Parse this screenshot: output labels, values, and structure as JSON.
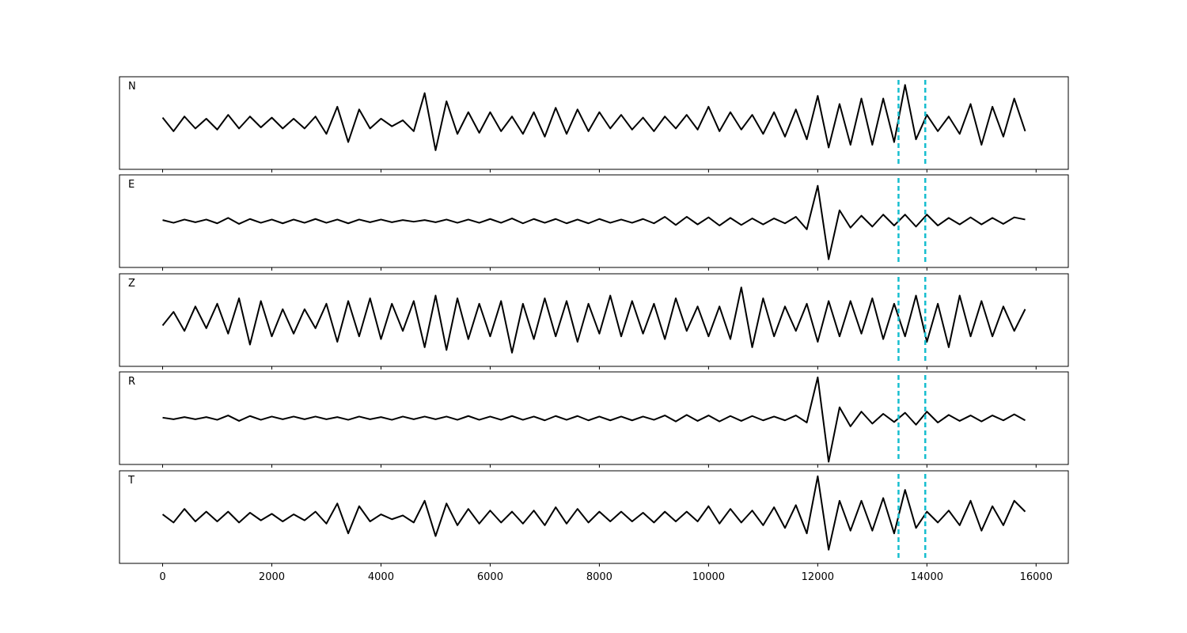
{
  "chart_data": [
    {
      "type": "line",
      "title": "N",
      "color": "#000000",
      "vline_color": "#17becf",
      "vlines": [
        13480,
        13970
      ],
      "xlim": [
        -790,
        16590
      ],
      "xticks": [
        0,
        2000,
        4000,
        6000,
        8000,
        10000,
        12000,
        14000,
        16000
      ],
      "ylim": [
        -0.85,
        0.85
      ],
      "x": [
        0,
        200,
        400,
        600,
        800,
        1000,
        1200,
        1400,
        1600,
        1800,
        2000,
        2200,
        2400,
        2600,
        2800,
        3000,
        3200,
        3400,
        3600,
        3800,
        4000,
        4200,
        4400,
        4600,
        4800,
        5000,
        5200,
        5400,
        5600,
        5800,
        6000,
        6200,
        6400,
        6600,
        6800,
        7000,
        7200,
        7400,
        7600,
        7800,
        8000,
        8200,
        8400,
        8600,
        8800,
        9000,
        9200,
        9400,
        9600,
        9800,
        10000,
        10200,
        10400,
        10600,
        10800,
        11000,
        11200,
        11400,
        11600,
        11800,
        12000,
        12200,
        12400,
        12600,
        12800,
        13000,
        13200,
        13400,
        13600,
        13800,
        14000,
        14200,
        14400,
        14600,
        14800,
        15000,
        15200,
        15400,
        15600,
        15800
      ],
      "values": [
        0.1,
        -0.15,
        0.12,
        -0.1,
        0.08,
        -0.12,
        0.15,
        -0.1,
        0.12,
        -0.08,
        0.1,
        -0.1,
        0.08,
        -0.1,
        0.12,
        -0.2,
        0.3,
        -0.35,
        0.25,
        -0.1,
        0.08,
        -0.06,
        0.05,
        -0.15,
        0.55,
        -0.5,
        0.4,
        -0.2,
        0.2,
        -0.18,
        0.2,
        -0.15,
        0.12,
        -0.2,
        0.2,
        -0.25,
        0.28,
        -0.2,
        0.25,
        -0.15,
        0.2,
        -0.1,
        0.15,
        -0.12,
        0.1,
        -0.15,
        0.12,
        -0.1,
        0.15,
        -0.12,
        0.3,
        -0.15,
        0.2,
        -0.12,
        0.15,
        -0.2,
        0.2,
        -0.25,
        0.25,
        -0.3,
        0.5,
        -0.45,
        0.35,
        -0.4,
        0.45,
        -0.4,
        0.45,
        -0.35,
        0.7,
        -0.3,
        0.15,
        -0.15,
        0.12,
        -0.2,
        0.35,
        -0.4,
        0.3,
        -0.25,
        0.45,
        -0.15
      ]
    },
    {
      "type": "line",
      "title": "E",
      "color": "#000000",
      "vline_color": "#17becf",
      "vlines": [
        13480,
        13970
      ],
      "xlim": [
        -790,
        16590
      ],
      "xticks": [
        0,
        2000,
        4000,
        6000,
        8000,
        10000,
        12000,
        14000,
        16000
      ],
      "ylim": [
        -0.85,
        0.85
      ],
      "x": [
        0,
        200,
        400,
        600,
        800,
        1000,
        1200,
        1400,
        1600,
        1800,
        2000,
        2200,
        2400,
        2600,
        2800,
        3000,
        3200,
        3400,
        3600,
        3800,
        4000,
        4200,
        4400,
        4600,
        4800,
        5000,
        5200,
        5400,
        5600,
        5800,
        6000,
        6200,
        6400,
        6600,
        6800,
        7000,
        7200,
        7400,
        7600,
        7800,
        8000,
        8200,
        8400,
        8600,
        8800,
        9000,
        9200,
        9400,
        9600,
        9800,
        10000,
        10200,
        10400,
        10600,
        10800,
        11000,
        11200,
        11400,
        11600,
        11800,
        12000,
        12200,
        12400,
        12600,
        12800,
        13000,
        13200,
        13400,
        13600,
        13800,
        14000,
        14200,
        14400,
        14600,
        14800,
        15000,
        15200,
        15400,
        15600,
        15800
      ],
      "values": [
        0.02,
        -0.03,
        0.03,
        -0.02,
        0.03,
        -0.04,
        0.06,
        -0.05,
        0.04,
        -0.03,
        0.03,
        -0.04,
        0.03,
        -0.03,
        0.04,
        -0.03,
        0.03,
        -0.04,
        0.03,
        -0.02,
        0.03,
        -0.02,
        0.02,
        -0.01,
        0.02,
        -0.02,
        0.03,
        -0.03,
        0.03,
        -0.03,
        0.04,
        -0.03,
        0.05,
        -0.04,
        0.04,
        -0.03,
        0.04,
        -0.04,
        0.03,
        -0.04,
        0.04,
        -0.03,
        0.03,
        -0.03,
        0.04,
        -0.04,
        0.08,
        -0.07,
        0.08,
        -0.06,
        0.07,
        -0.08,
        0.06,
        -0.07,
        0.05,
        -0.06,
        0.05,
        -0.04,
        0.08,
        -0.15,
        0.65,
        -0.7,
        0.2,
        -0.12,
        0.1,
        -0.1,
        0.12,
        -0.08,
        0.12,
        -0.1,
        0.12,
        -0.08,
        0.06,
        -0.06,
        0.07,
        -0.06,
        0.06,
        -0.05,
        0.07,
        0.03
      ]
    },
    {
      "type": "line",
      "title": "Z",
      "color": "#000000",
      "vline_color": "#17becf",
      "vlines": [
        13480,
        13970
      ],
      "xlim": [
        -790,
        16590
      ],
      "xticks": [
        0,
        2000,
        4000,
        6000,
        8000,
        10000,
        12000,
        14000,
        16000
      ],
      "ylim": [
        -0.85,
        0.85
      ],
      "x": [
        0,
        200,
        400,
        600,
        800,
        1000,
        1200,
        1400,
        1600,
        1800,
        2000,
        2200,
        2400,
        2600,
        2800,
        3000,
        3200,
        3400,
        3600,
        3800,
        4000,
        4200,
        4400,
        4600,
        4800,
        5000,
        5200,
        5400,
        5600,
        5800,
        6000,
        6200,
        6400,
        6600,
        6800,
        7000,
        7200,
        7400,
        7600,
        7800,
        8000,
        8200,
        8400,
        8600,
        8800,
        9000,
        9200,
        9400,
        9600,
        9800,
        10000,
        10200,
        10400,
        10600,
        10800,
        11000,
        11200,
        11400,
        11600,
        11800,
        12000,
        12200,
        12400,
        12600,
        12800,
        13000,
        13200,
        13400,
        13600,
        13800,
        14000,
        14200,
        14400,
        14600,
        14800,
        15000,
        15200,
        15400,
        15600,
        15800
      ],
      "values": [
        -0.1,
        0.15,
        -0.2,
        0.25,
        -0.15,
        0.3,
        -0.25,
        0.4,
        -0.45,
        0.35,
        -0.3,
        0.2,
        -0.25,
        0.2,
        -0.15,
        0.3,
        -0.4,
        0.35,
        -0.3,
        0.4,
        -0.35,
        0.3,
        -0.2,
        0.35,
        -0.5,
        0.45,
        -0.55,
        0.4,
        -0.35,
        0.3,
        -0.3,
        0.35,
        -0.6,
        0.3,
        -0.35,
        0.4,
        -0.3,
        0.35,
        -0.4,
        0.3,
        -0.25,
        0.45,
        -0.3,
        0.35,
        -0.25,
        0.3,
        -0.35,
        0.4,
        -0.2,
        0.25,
        -0.3,
        0.25,
        -0.35,
        0.6,
        -0.5,
        0.4,
        -0.3,
        0.25,
        -0.2,
        0.3,
        -0.4,
        0.35,
        -0.3,
        0.35,
        -0.25,
        0.4,
        -0.35,
        0.3,
        -0.3,
        0.45,
        -0.4,
        0.3,
        -0.5,
        0.45,
        -0.3,
        0.35,
        -0.3,
        0.25,
        -0.2,
        0.2
      ]
    },
    {
      "type": "line",
      "title": "R",
      "color": "#000000",
      "vline_color": "#17becf",
      "vlines": [
        13480,
        13970
      ],
      "xlim": [
        -790,
        16590
      ],
      "xticks": [
        0,
        2000,
        4000,
        6000,
        8000,
        10000,
        12000,
        14000,
        16000
      ],
      "ylim": [
        -0.85,
        0.85
      ],
      "x": [
        0,
        200,
        400,
        600,
        800,
        1000,
        1200,
        1400,
        1600,
        1800,
        2000,
        2200,
        2400,
        2600,
        2800,
        3000,
        3200,
        3400,
        3600,
        3800,
        4000,
        4200,
        4400,
        4600,
        4800,
        5000,
        5200,
        5400,
        5600,
        5800,
        6000,
        6200,
        6400,
        6600,
        6800,
        7000,
        7200,
        7400,
        7600,
        7800,
        8000,
        8200,
        8400,
        8600,
        8800,
        9000,
        9200,
        9400,
        9600,
        9800,
        10000,
        10200,
        10400,
        10600,
        10800,
        11000,
        11200,
        11400,
        11600,
        11800,
        12000,
        12200,
        12400,
        12600,
        12800,
        13000,
        13200,
        13400,
        13600,
        13800,
        14000,
        14200,
        14400,
        14600,
        14800,
        15000,
        15200,
        15400,
        15600,
        15800
      ],
      "values": [
        0.01,
        -0.02,
        0.02,
        -0.02,
        0.02,
        -0.03,
        0.05,
        -0.05,
        0.04,
        -0.03,
        0.03,
        -0.02,
        0.03,
        -0.02,
        0.03,
        -0.02,
        0.02,
        -0.03,
        0.03,
        -0.02,
        0.02,
        -0.03,
        0.03,
        -0.02,
        0.03,
        -0.02,
        0.03,
        -0.03,
        0.04,
        -0.03,
        0.03,
        -0.03,
        0.04,
        -0.03,
        0.03,
        -0.04,
        0.04,
        -0.03,
        0.04,
        -0.04,
        0.03,
        -0.04,
        0.03,
        -0.04,
        0.03,
        -0.03,
        0.05,
        -0.06,
        0.06,
        -0.05,
        0.05,
        -0.06,
        0.04,
        -0.05,
        0.04,
        -0.04,
        0.03,
        -0.04,
        0.05,
        -0.08,
        0.75,
        -0.8,
        0.2,
        -0.15,
        0.12,
        -0.1,
        0.08,
        -0.07,
        0.1,
        -0.12,
        0.12,
        -0.08,
        0.06,
        -0.05,
        0.05,
        -0.06,
        0.05,
        -0.04,
        0.07,
        -0.04
      ]
    },
    {
      "type": "line",
      "title": "T",
      "color": "#000000",
      "vline_color": "#17becf",
      "vlines": [
        13480,
        13970
      ],
      "xlim": [
        -790,
        16590
      ],
      "xticks": [
        0,
        2000,
        4000,
        6000,
        8000,
        10000,
        12000,
        14000,
        16000
      ],
      "ylim": [
        -0.85,
        0.85
      ],
      "x": [
        0,
        200,
        400,
        600,
        800,
        1000,
        1200,
        1400,
        1600,
        1800,
        2000,
        2200,
        2400,
        2600,
        2800,
        3000,
        3200,
        3400,
        3600,
        3800,
        4000,
        4200,
        4400,
        4600,
        4800,
        5000,
        5200,
        5400,
        5600,
        5800,
        6000,
        6200,
        6400,
        6600,
        6800,
        7000,
        7200,
        7400,
        7600,
        7800,
        8000,
        8200,
        8400,
        8600,
        8800,
        9000,
        9200,
        9400,
        9600,
        9800,
        10000,
        10200,
        10400,
        10600,
        10800,
        11000,
        11200,
        11400,
        11600,
        11800,
        12000,
        12200,
        12400,
        12600,
        12800,
        13000,
        13200,
        13400,
        13600,
        13800,
        14000,
        14200,
        14400,
        14600,
        14800,
        15000,
        15200,
        15400,
        15600,
        15800
      ],
      "values": [
        0.05,
        -0.1,
        0.15,
        -0.08,
        0.1,
        -0.08,
        0.1,
        -0.1,
        0.08,
        -0.06,
        0.06,
        -0.08,
        0.05,
        -0.06,
        0.1,
        -0.12,
        0.25,
        -0.3,
        0.2,
        -0.08,
        0.05,
        -0.04,
        0.03,
        -0.1,
        0.3,
        -0.35,
        0.25,
        -0.15,
        0.15,
        -0.12,
        0.12,
        -0.1,
        0.1,
        -0.12,
        0.12,
        -0.15,
        0.18,
        -0.12,
        0.15,
        -0.1,
        0.1,
        -0.08,
        0.1,
        -0.08,
        0.08,
        -0.1,
        0.1,
        -0.08,
        0.1,
        -0.08,
        0.2,
        -0.12,
        0.15,
        -0.1,
        0.12,
        -0.15,
        0.18,
        -0.2,
        0.22,
        -0.3,
        0.75,
        -0.6,
        0.3,
        -0.25,
        0.3,
        -0.25,
        0.35,
        -0.3,
        0.5,
        -0.2,
        0.1,
        -0.1,
        0.12,
        -0.15,
        0.3,
        -0.25,
        0.2,
        -0.15,
        0.3,
        0.1
      ]
    }
  ]
}
